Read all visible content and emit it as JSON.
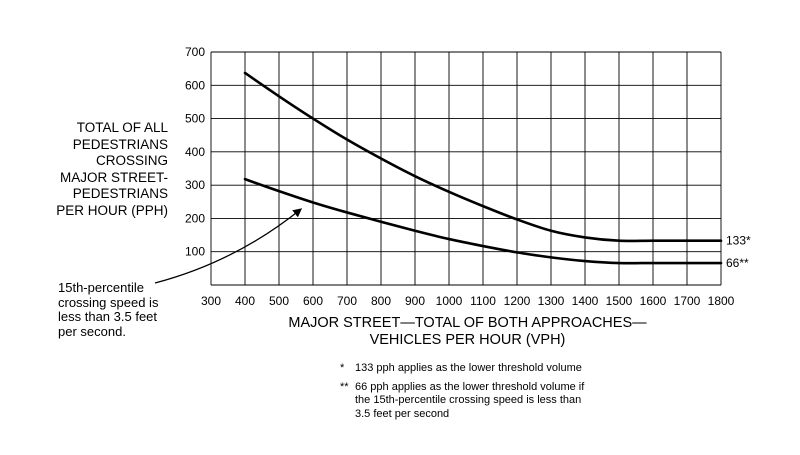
{
  "chart_data": {
    "type": "line",
    "ylabel_lines": [
      "TOTAL OF ALL",
      "PEDESTRIANS",
      "CROSSING",
      "MAJOR STREET-",
      "PEDESTRIANS",
      "PER HOUR (PPH)"
    ],
    "xlabel_lines": [
      "MAJOR STREET—TOTAL OF BOTH APPROACHES—",
      "VEHICLES PER HOUR (VPH)"
    ],
    "xlim": [
      300,
      1800
    ],
    "ylim": [
      0,
      700
    ],
    "x_ticks": [
      "300",
      "400",
      "500",
      "600",
      "700",
      "800",
      "900",
      "1000",
      "1100",
      "1200",
      "1300",
      "1400",
      "1500",
      "1600",
      "1700",
      "1800"
    ],
    "y_ticks": [
      "100",
      "200",
      "300",
      "400",
      "500",
      "600",
      "700"
    ],
    "grid": true,
    "series": [
      {
        "end_label": "133*",
        "x": [
          400,
          500,
          600,
          700,
          800,
          900,
          1000,
          1100,
          1200,
          1300,
          1400,
          1500,
          1600,
          1700,
          1800
        ],
        "y": [
          637,
          567,
          500,
          437,
          380,
          327,
          280,
          237,
          197,
          163,
          143,
          133,
          133,
          133,
          133
        ]
      },
      {
        "end_label": "66**",
        "x": [
          400,
          500,
          600,
          700,
          800,
          900,
          1000,
          1100,
          1200,
          1300,
          1400,
          1500,
          1600,
          1700,
          1800
        ],
        "y": [
          318,
          282,
          248,
          218,
          190,
          163,
          138,
          117,
          98,
          83,
          72,
          66,
          66,
          66,
          66
        ]
      }
    ],
    "annotation_lines": [
      "15th-percentile",
      "crossing speed is",
      "less than 3.5 feet",
      "per second."
    ],
    "annotation_point": {
      "x": 575,
      "y": 245
    }
  },
  "footnotes": [
    {
      "mark": "*",
      "lines": [
        "133 pph applies as the lower threshold volume"
      ]
    },
    {
      "mark": "**",
      "lines": [
        "66 pph applies as the lower threshold volume if",
        "the 15th-percentile crossing speed is less than",
        "3.5 feet per second"
      ]
    }
  ]
}
